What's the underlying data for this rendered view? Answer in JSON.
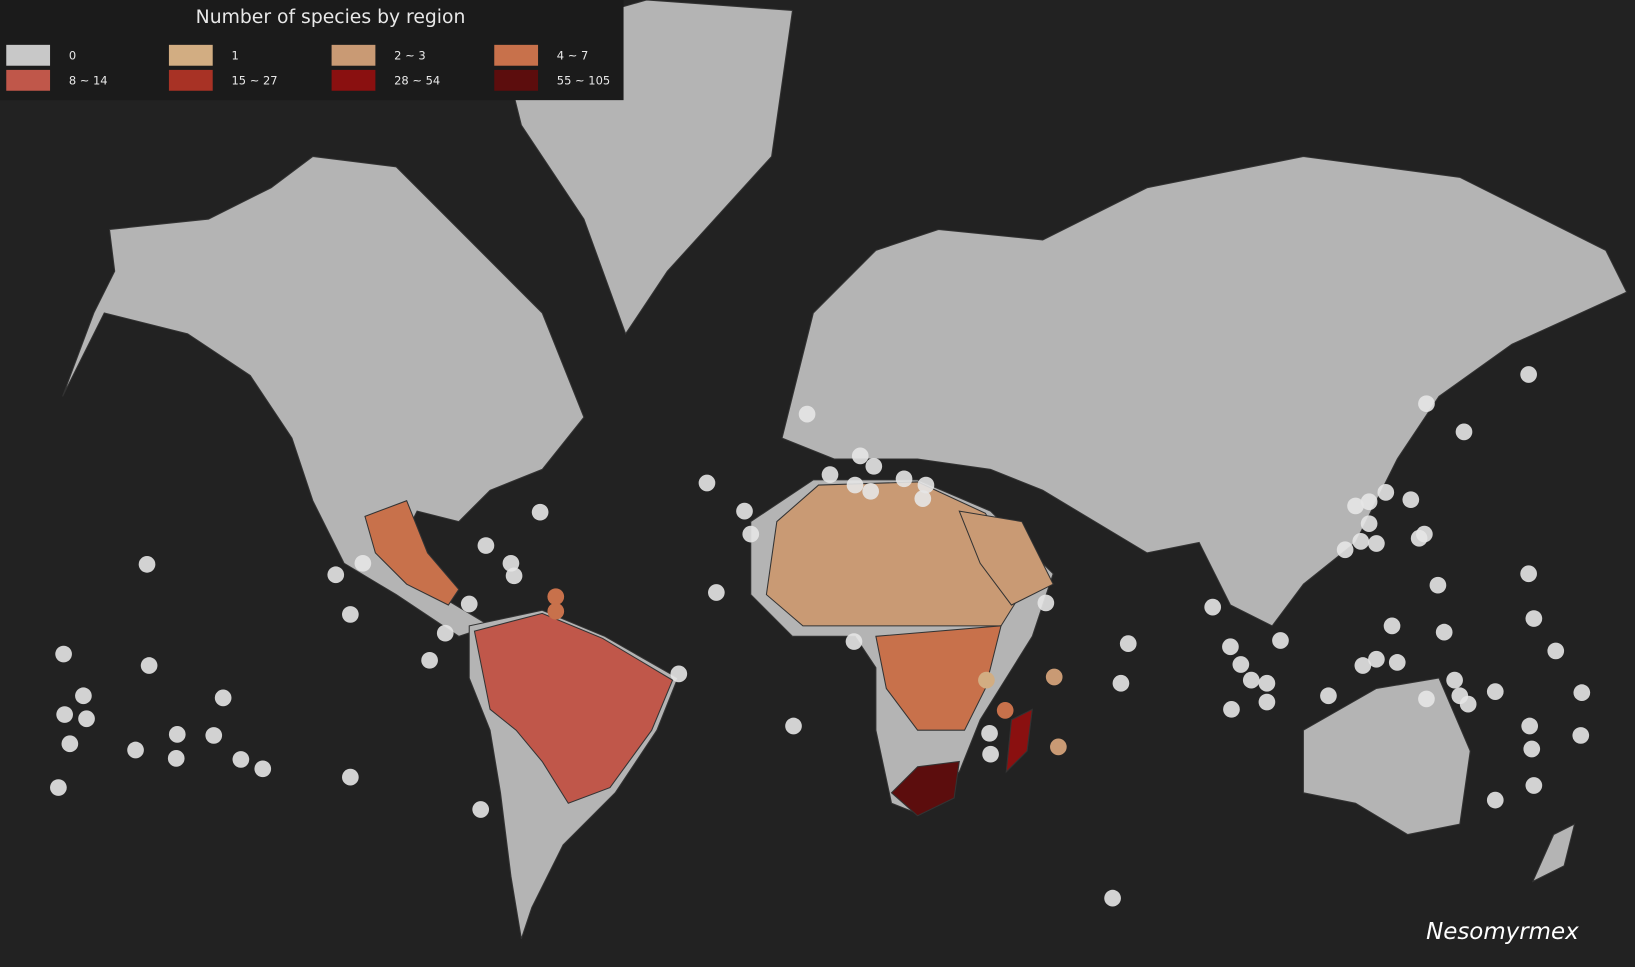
{
  "legend": {
    "title": "Number of species by region",
    "items": [
      {
        "label": "0",
        "color": "#c8c8c8"
      },
      {
        "label": "1",
        "color": "#d2ad82"
      },
      {
        "label": "2 ~ 3",
        "color": "#c99a74"
      },
      {
        "label": "4 ~ 7",
        "color": "#c8714b"
      },
      {
        "label": "8 ~ 14",
        "color": "#c0574a"
      },
      {
        "label": "15 ~ 27",
        "color": "#a83225"
      },
      {
        "label": "28 ~ 54",
        "color": "#8a1010"
      },
      {
        "label": "55 ~ 105",
        "color": "#5c0d0d"
      }
    ]
  },
  "genus": "Nesomyrmex"
}
